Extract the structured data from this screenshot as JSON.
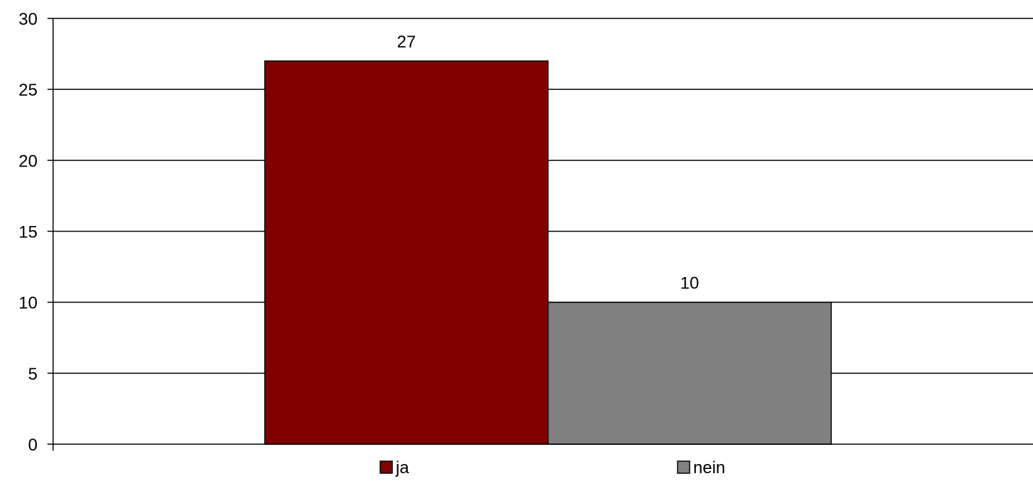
{
  "chart_data": {
    "type": "bar",
    "categories": [
      ""
    ],
    "series": [
      {
        "name": "ja",
        "values": [
          27
        ],
        "color": "#800000"
      },
      {
        "name": "nein",
        "values": [
          10
        ],
        "color": "#808080"
      }
    ],
    "ylim": [
      0,
      30
    ],
    "yticks": [
      0,
      5,
      10,
      15,
      20,
      25,
      30
    ],
    "title": "",
    "xlabel": "",
    "ylabel": "",
    "grid": true,
    "legend_position": "bottom",
    "data_labels": true
  }
}
